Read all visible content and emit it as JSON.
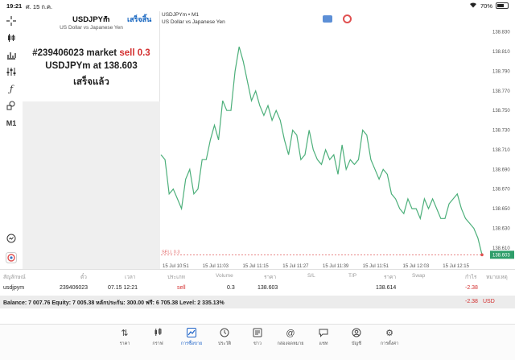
{
  "status_bar": {
    "time": "19:21",
    "date": "ศ. 15 ก.ค.",
    "battery": "70%",
    "battery_level": 0.7
  },
  "toolbar": {
    "timeframe": "M1"
  },
  "order_panel": {
    "symbol": "USDJPYm",
    "done_label": "เสร็จสิ้น",
    "description": "US Dollar vs Japanese Yen",
    "result_prefix": "#239406023 market",
    "result_side": "sell 0.3",
    "result_line2": "USDJPYm at 138.603",
    "result_line3": "เสร็จแล้ว"
  },
  "chart": {
    "header_title": "USDJPYm • M1",
    "header_desc": "US Dollar vs Japanese Yen",
    "sell_label": "SELL 0.3",
    "current_price_label": "138.603"
  },
  "chart_data": {
    "type": "line",
    "series": [
      {
        "values": [
          138.705,
          138.7,
          138.665,
          138.67,
          138.66,
          138.65,
          138.68,
          138.69,
          138.665,
          138.67,
          138.7,
          138.7,
          138.72,
          138.735,
          138.72,
          138.76,
          138.75,
          138.75,
          138.79,
          138.815,
          138.8,
          138.78,
          138.76,
          138.77,
          138.755,
          138.745,
          138.755,
          138.74,
          138.75,
          138.74,
          138.72,
          138.705,
          138.73,
          138.725,
          138.7,
          138.705,
          138.73,
          138.71,
          138.7,
          138.695,
          138.71,
          138.7,
          138.705,
          138.685,
          138.715,
          138.69,
          138.7,
          138.695,
          138.7,
          138.73,
          138.725,
          138.7,
          138.69,
          138.68,
          138.69,
          138.685,
          138.665,
          138.66,
          138.65,
          138.645,
          138.66,
          138.65,
          138.65,
          138.64,
          138.66,
          138.65,
          138.66,
          138.65,
          138.64,
          138.64,
          138.655,
          138.66,
          138.665,
          138.65,
          138.64,
          138.635,
          138.63,
          138.62,
          138.603
        ]
      }
    ],
    "x_ticks": [
      "15 Jul 10:51",
      "15 Jul 11:03",
      "15 Jul 11:15",
      "15 Jul 11:27",
      "15 Jul 11:39",
      "15 Jul 11:51",
      "15 Jul 12:03",
      "15 Jul 12:15"
    ],
    "y_ticks": [
      "138.830",
      "138.810",
      "138.790",
      "138.770",
      "138.750",
      "138.730",
      "138.710",
      "138.690",
      "138.670",
      "138.650",
      "138.630",
      "138.610"
    ],
    "ylim": [
      138.6,
      138.838
    ],
    "sell_level": 138.603,
    "line_color": "#4caf7a",
    "grid": false
  },
  "table": {
    "headers": [
      "สัญลักษณ์",
      "ตั๋ว",
      "เวลา",
      "ประเภท",
      "Volume",
      "ราคา",
      "S/L",
      "T/P",
      "ราคา",
      "Swap",
      "กำไร",
      "หมายเหตุ"
    ],
    "row": {
      "symbol": "usdjpym",
      "ticket": "239406023",
      "time": "07.15 12:21",
      "type": "sell",
      "volume": "0.3",
      "price": "138.603",
      "sl": "",
      "tp": "",
      "current_price": "138.614",
      "swap": "",
      "profit": "-2.38",
      "comment": ""
    },
    "balance_text": "Balance: 7 007.76 Equity: 7 005.38 หลักประกัน: 300.00 ฟรี: 6 705.38 Level: 2 335.13%",
    "balance_profit": "-2.38",
    "balance_currency": "USD"
  },
  "nav": {
    "items": [
      {
        "label": "ราคา",
        "icon": "quotes-icon"
      },
      {
        "label": "กราฟ",
        "icon": "candles-icon"
      },
      {
        "label": "การซื้อขาย",
        "icon": "trade-icon",
        "active": true
      },
      {
        "label": "ประวัติ",
        "icon": "history-icon"
      },
      {
        "label": "ข่าว",
        "icon": "news-icon"
      },
      {
        "label": "กล่องจดหมาย",
        "icon": "mailbox-icon"
      },
      {
        "label": "แชท",
        "icon": "chat-icon"
      },
      {
        "label": "บัญชี",
        "icon": "account-icon"
      },
      {
        "label": "การตั้งค่า",
        "icon": "settings-icon"
      }
    ]
  }
}
